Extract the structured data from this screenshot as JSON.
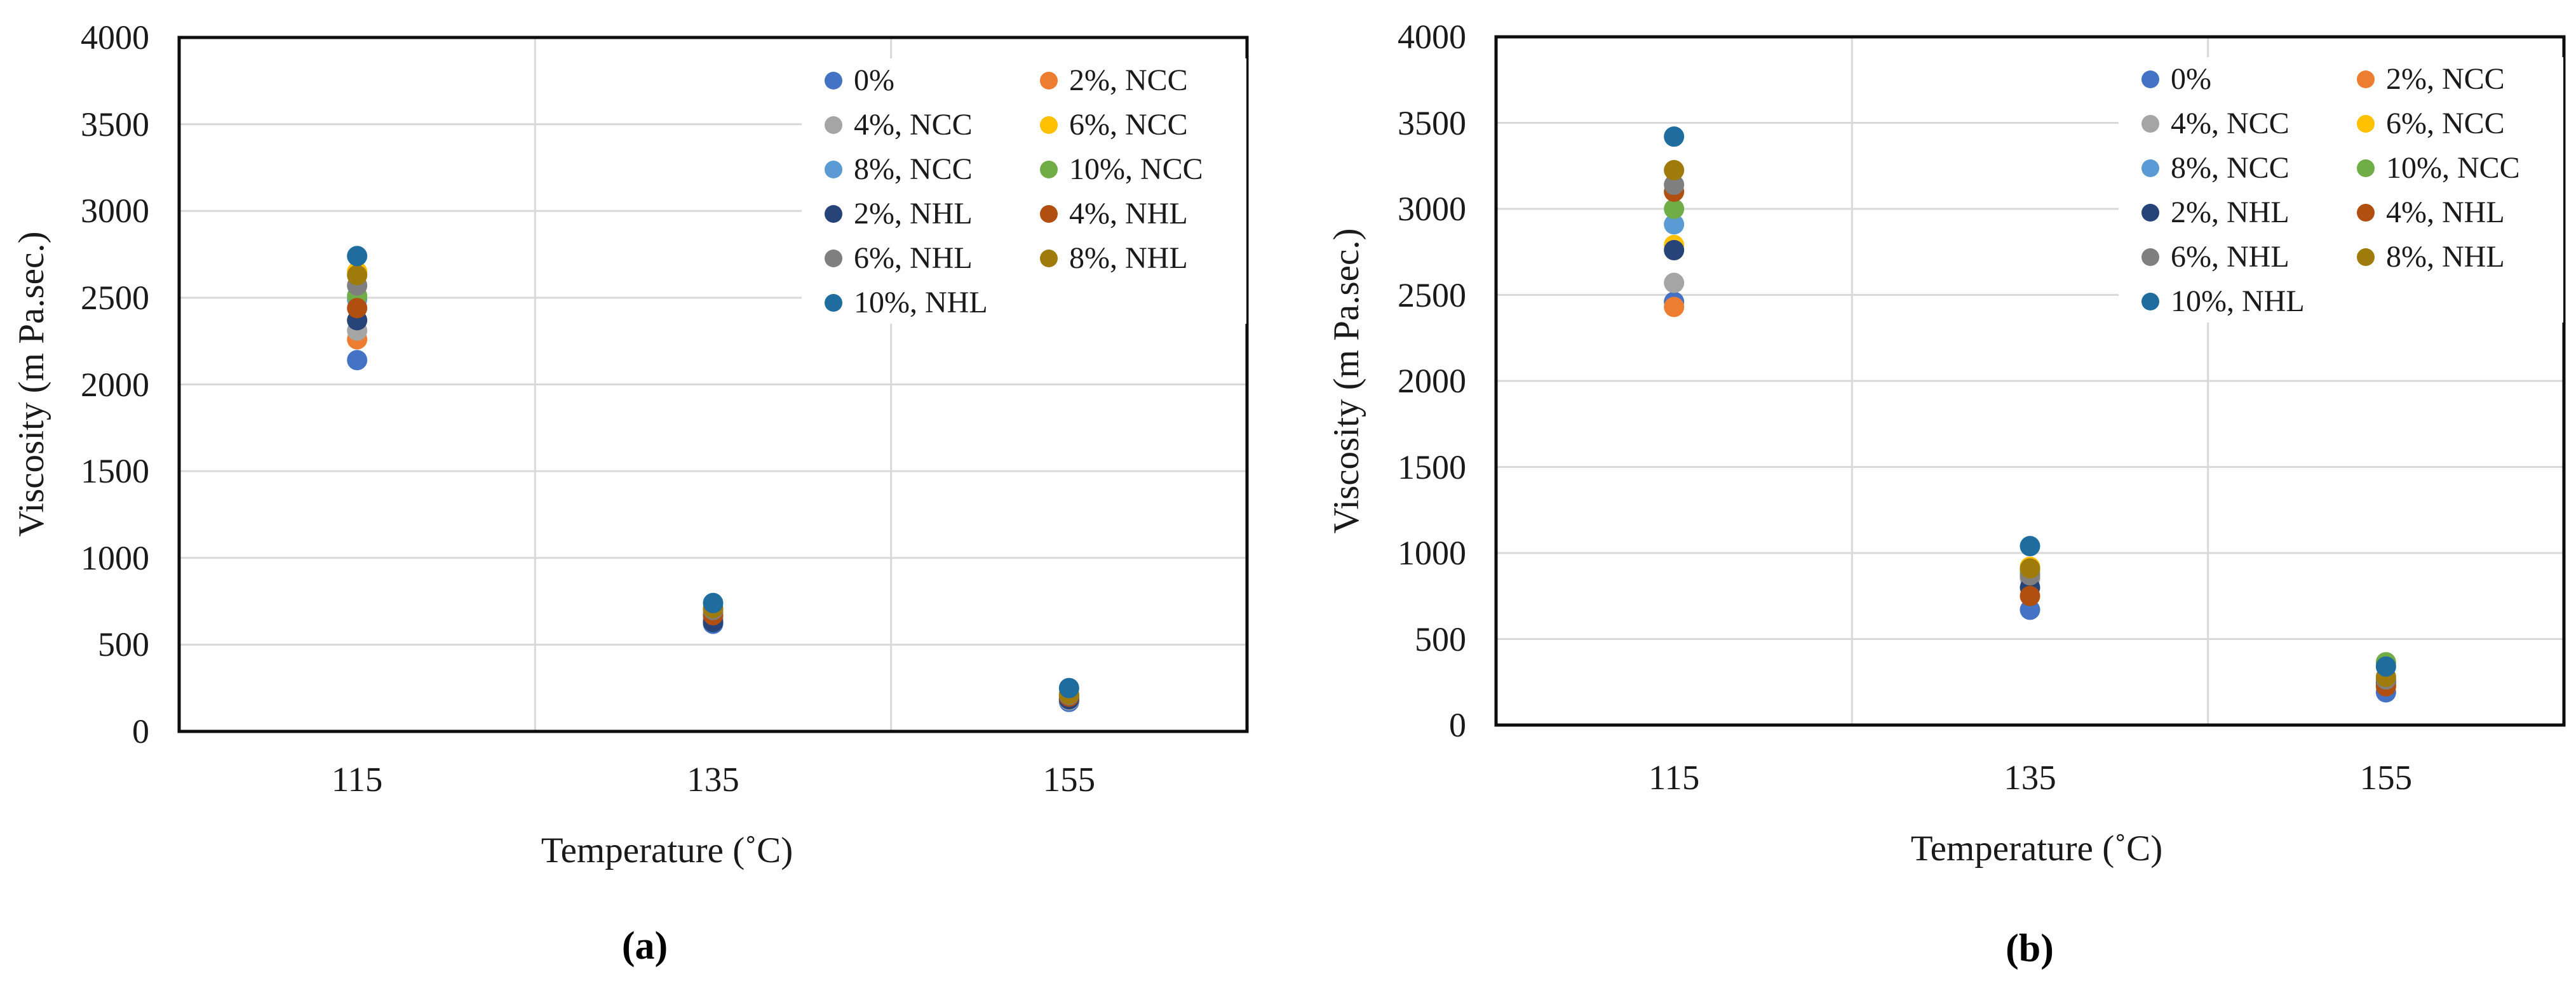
{
  "figure": {
    "background": "#ffffff",
    "grid_color": "#d9d9d9",
    "border_color": "#0d0d0d",
    "text_color": "#1a1a1a"
  },
  "chart_data": [
    {
      "type": "scatter",
      "panel": "a",
      "caption": "(a)",
      "xlabel": "Temperature (˚C)",
      "ylabel": "Viscosity (m Pa.sec.)",
      "categories": [
        "115",
        "135",
        "155"
      ],
      "ylim": [
        0,
        4000
      ],
      "ytick_step": 500,
      "yticks": [
        "0",
        "500",
        "1000",
        "1500",
        "2000",
        "2500",
        "3000",
        "3500",
        "4000"
      ],
      "grid": true,
      "legend_position": "top-right, 2 columns, white fill",
      "series": [
        {
          "name": "0%",
          "color": "#4472C4",
          "values": [
            2140,
            620,
            170
          ]
        },
        {
          "name": "2%, NCC",
          "color": "#ED7D31",
          "values": [
            2260,
            650,
            185
          ]
        },
        {
          "name": "4%, NCC",
          "color": "#A5A5A5",
          "values": [
            2310,
            640,
            180
          ]
        },
        {
          "name": "6%, NCC",
          "color": "#FFC000",
          "values": [
            2650,
            690,
            195
          ]
        },
        {
          "name": "8%, NCC",
          "color": "#5B9BD5",
          "values": [
            2490,
            660,
            190
          ]
        },
        {
          "name": "10%, NCC",
          "color": "#70AD47",
          "values": [
            2510,
            680,
            205
          ]
        },
        {
          "name": "2%, NHL",
          "color": "#264478",
          "values": [
            2370,
            630,
            185
          ]
        },
        {
          "name": "4%, NHL",
          "color": "#B04F10",
          "values": [
            2440,
            670,
            200
          ]
        },
        {
          "name": "6%, NHL",
          "color": "#7F7F7F",
          "values": [
            2570,
            700,
            210
          ]
        },
        {
          "name": "8%, NHL",
          "color": "#9E7B0A",
          "values": [
            2630,
            710,
            215
          ]
        },
        {
          "name": "10%, NHL",
          "color": "#1F6C9E",
          "values": [
            2740,
            740,
            250
          ]
        }
      ]
    },
    {
      "type": "scatter",
      "panel": "b",
      "caption": "(b)",
      "xlabel": "Temperature (˚C)",
      "ylabel": "Viscosity (m Pa.sec.)",
      "categories": [
        "115",
        "135",
        "155"
      ],
      "ylim": [
        0,
        4000
      ],
      "ytick_step": 500,
      "yticks": [
        "0",
        "500",
        "1000",
        "1500",
        "2000",
        "2500",
        "3000",
        "3500",
        "4000"
      ],
      "grid": true,
      "legend_position": "top-right, 2 columns, white fill",
      "series": [
        {
          "name": "0%",
          "color": "#4472C4",
          "values": [
            2460,
            670,
            190
          ]
        },
        {
          "name": "2%, NCC",
          "color": "#ED7D31",
          "values": [
            2430,
            860,
            230
          ]
        },
        {
          "name": "4%, NCC",
          "color": "#A5A5A5",
          "values": [
            2570,
            850,
            240
          ]
        },
        {
          "name": "6%, NCC",
          "color": "#FFC000",
          "values": [
            2790,
            920,
            270
          ]
        },
        {
          "name": "8%, NCC",
          "color": "#5B9BD5",
          "values": [
            2910,
            880,
            260
          ]
        },
        {
          "name": "10%, NCC",
          "color": "#70AD47",
          "values": [
            3000,
            900,
            365
          ]
        },
        {
          "name": "2%, NHL",
          "color": "#264478",
          "values": [
            2760,
            800,
            250
          ]
        },
        {
          "name": "4%, NHL",
          "color": "#B04F10",
          "values": [
            3100,
            750,
            225
          ]
        },
        {
          "name": "6%, NHL",
          "color": "#7F7F7F",
          "values": [
            3140,
            870,
            265
          ]
        },
        {
          "name": "8%, NHL",
          "color": "#9E7B0A",
          "values": [
            3225,
            910,
            280
          ]
        },
        {
          "name": "10%, NHL",
          "color": "#1F6C9E",
          "values": [
            3420,
            1040,
            340
          ]
        }
      ]
    }
  ]
}
